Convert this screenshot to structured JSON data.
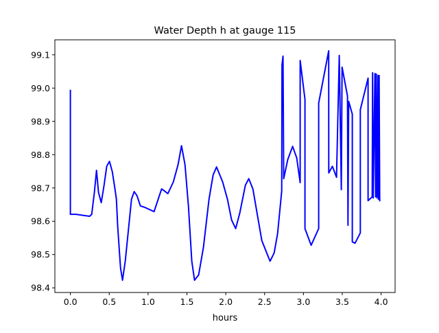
{
  "chart_data": {
    "type": "line",
    "title": "Water Depth h at gauge 115",
    "xlabel": "hours",
    "ylabel": "",
    "xlim": [
      -0.2,
      4.18
    ],
    "ylim": [
      98.386,
      99.145
    ],
    "grid": false,
    "x_ticks": [
      0.0,
      0.5,
      1.0,
      1.5,
      2.0,
      2.5,
      3.0,
      3.5,
      4.0
    ],
    "x_tick_labels": [
      "0.0",
      "0.5",
      "1.0",
      "1.5",
      "2.0",
      "2.5",
      "3.0",
      "3.5",
      "4.0"
    ],
    "y_ticks": [
      98.4,
      98.5,
      98.6,
      98.7,
      98.8,
      98.9,
      99.0,
      99.1
    ],
    "y_tick_labels": [
      "98.4",
      "98.5",
      "98.6",
      "98.7",
      "98.8",
      "98.9",
      "99.0",
      "99.1"
    ],
    "series": [
      {
        "name": "h",
        "color": "#0000ff",
        "x": [
          0,
          0,
          0.071,
          0.185,
          0.247,
          0.274,
          0.309,
          0.336,
          0.362,
          0.397,
          0.433,
          0.468,
          0.503,
          0.539,
          0.574,
          0.592,
          0.609,
          0.645,
          0.671,
          0.706,
          0.751,
          0.786,
          0.821,
          0.857,
          0.901,
          0.954,
          1.077,
          1.13,
          1.174,
          1.21,
          1.254,
          1.325,
          1.386,
          1.43,
          1.475,
          1.519,
          1.563,
          1.598,
          1.651,
          1.713,
          1.784,
          1.837,
          1.881,
          1.96,
          2.022,
          2.075,
          2.128,
          2.181,
          2.252,
          2.296,
          2.349,
          2.402,
          2.464,
          2.534,
          2.57,
          2.623,
          2.667,
          2.72,
          2.724,
          2.737,
          2.746,
          2.799,
          2.861,
          2.914,
          2.958,
          2.958,
          3.02,
          3.02,
          3.099,
          3.196,
          3.196,
          3.325,
          3.326,
          3.373,
          3.426,
          3.461,
          3.488,
          3.497,
          3.567,
          3.573,
          3.582,
          3.629,
          3.629,
          3.664,
          3.732,
          3.732,
          3.832,
          3.832,
          3.885,
          3.89,
          3.898,
          3.92,
          3.929,
          3.938,
          3.947,
          3.96,
          3.965,
          3.974,
          3.982
        ],
        "y": [
          98.995,
          98.621,
          98.621,
          98.617,
          98.615,
          98.621,
          98.687,
          98.753,
          98.687,
          98.656,
          98.708,
          98.765,
          98.78,
          98.749,
          98.697,
          98.666,
          98.584,
          98.46,
          98.423,
          98.48,
          98.584,
          98.666,
          98.689,
          98.677,
          98.646,
          98.642,
          98.629,
          98.666,
          98.697,
          98.691,
          98.683,
          98.718,
          98.77,
          98.827,
          98.77,
          98.646,
          98.48,
          98.423,
          98.439,
          98.522,
          98.666,
          98.739,
          98.763,
          98.718,
          98.666,
          98.604,
          98.578,
          98.625,
          98.708,
          98.728,
          98.697,
          98.625,
          98.542,
          98.501,
          98.48,
          98.505,
          98.563,
          98.691,
          99.069,
          99.096,
          98.728,
          98.786,
          98.825,
          98.79,
          98.716,
          99.083,
          98.966,
          98.578,
          98.528,
          98.578,
          98.955,
          99.112,
          98.745,
          98.765,
          98.732,
          99.098,
          98.695,
          99.063,
          98.976,
          98.588,
          98.96,
          98.922,
          98.538,
          98.534,
          98.565,
          98.935,
          99.03,
          98.662,
          98.673,
          99.046,
          98.67,
          99.044,
          98.673,
          99.042,
          98.67,
          99.038,
          98.666,
          99.038,
          98.66
        ]
      }
    ]
  }
}
